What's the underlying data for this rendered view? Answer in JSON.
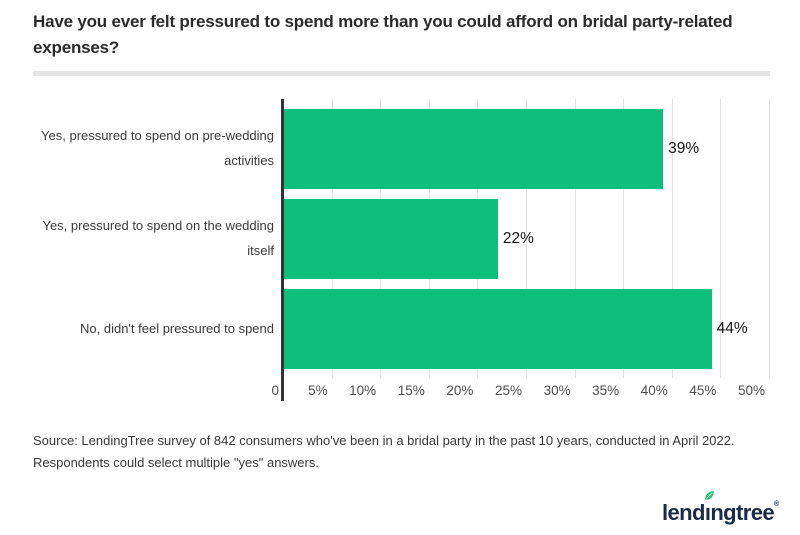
{
  "header": {
    "title": "Have you ever felt pressured to spend more than you could afford on bridal party-related expenses?"
  },
  "chart_data": {
    "type": "bar",
    "orientation": "horizontal",
    "title": "Have you ever felt pressured to spend more than you could afford on bridal party-related expenses?",
    "categories": [
      "Yes, pressured to spend on pre-wedding activities",
      "Yes, pressured to spend on the wedding itself",
      "No, didn't feel pressured to spend"
    ],
    "values": [
      39,
      22,
      44
    ],
    "value_labels": [
      "39%",
      "22%",
      "44%"
    ],
    "x_ticks": [
      "0",
      "5%",
      "10%",
      "15%",
      "20%",
      "25%",
      "30%",
      "35%",
      "40%",
      "45%",
      "50%"
    ],
    "xlim": [
      0,
      50
    ],
    "xlabel": "",
    "ylabel": "",
    "grid": true,
    "legend": false,
    "bar_color": "#0dbe7c",
    "axis_color": "#333333",
    "gridline_color": "#e3e3e3"
  },
  "footer": {
    "source_lines": [
      "Source: LendingTree survey of 842 consumers who've been in a bridal party in the past 10 years, conducted in April 2022.",
      "Respondents could select multiple \"yes\" answers."
    ]
  },
  "logo": {
    "brand": "lendingtree",
    "text_before_leaf": "lend",
    "dotless_i": "ı",
    "text_after_leaf": "ngtree",
    "registered_mark": "®",
    "text_color": "#1a2b49",
    "leaf_color": "#21c16e"
  }
}
